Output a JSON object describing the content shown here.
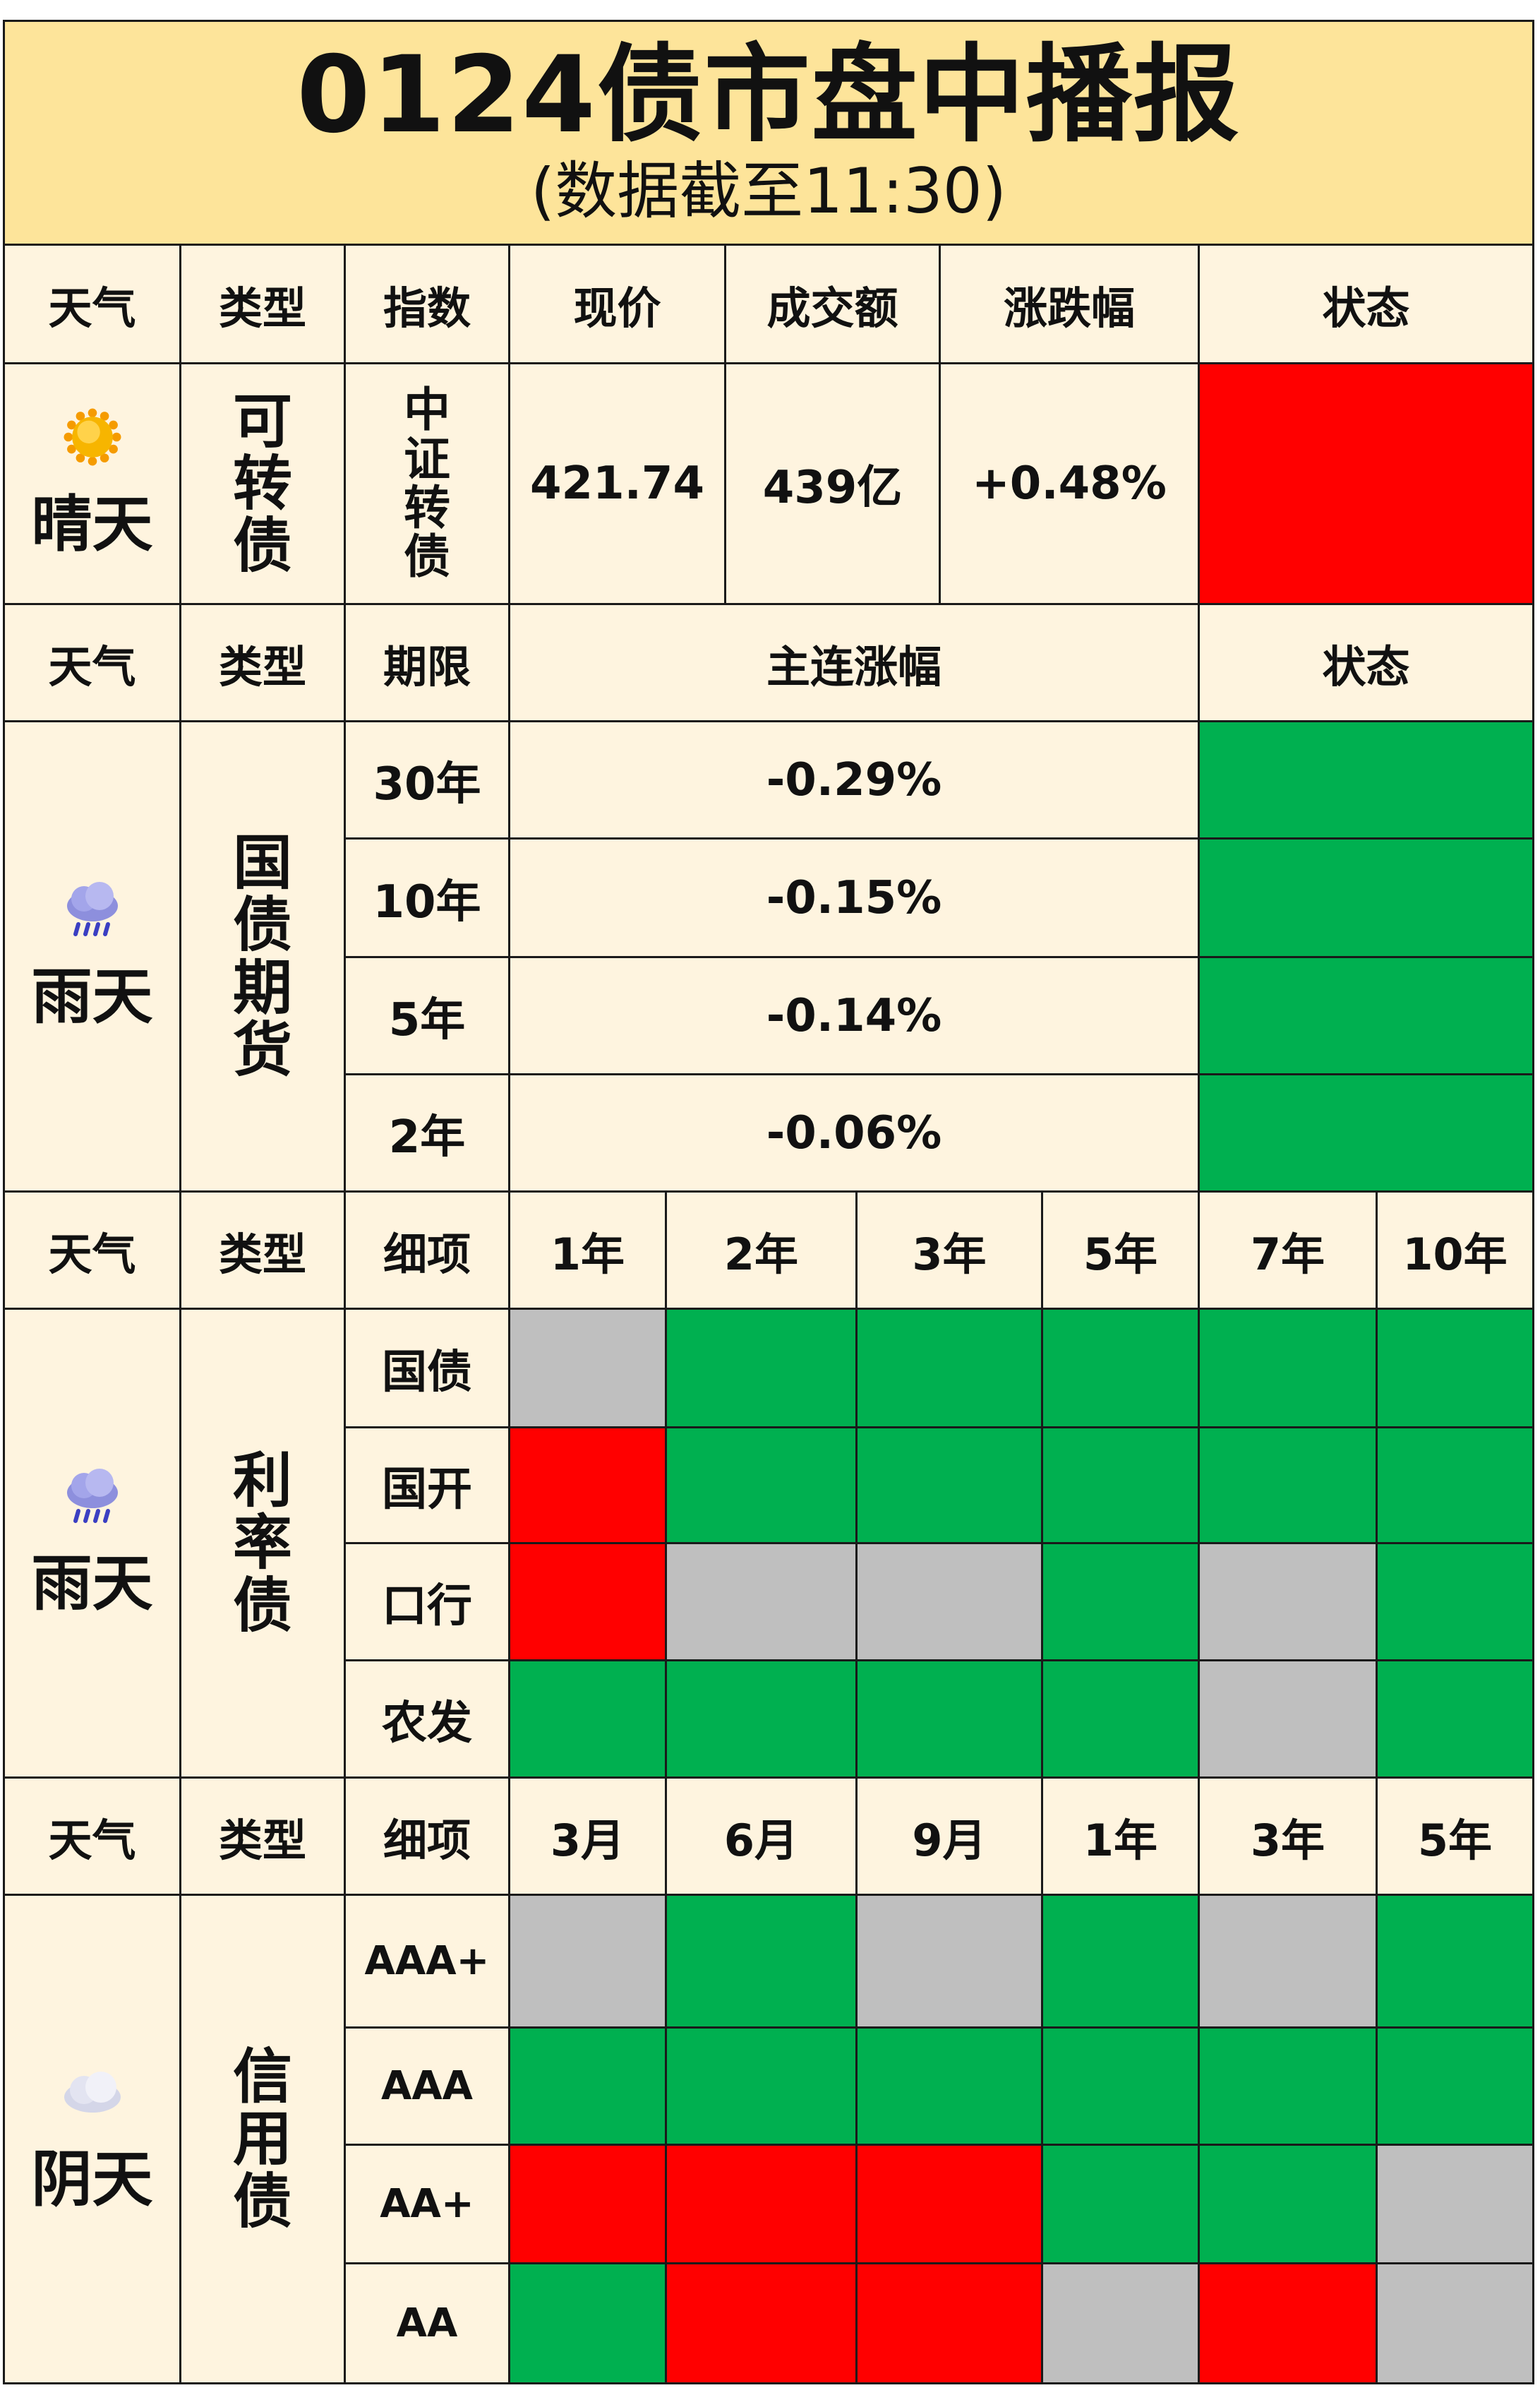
{
  "header": {
    "title": "0124债市盘中播报",
    "subtitle": "(数据截至11:30)"
  },
  "colors": {
    "red": "#ff0000",
    "green": "#00b050",
    "gray": "#bfbfbf",
    "cell": "#fef4df",
    "title": "#fde49a"
  },
  "convertible": {
    "headers": [
      "天气",
      "类型",
      "指数",
      "现价",
      "成交额",
      "涨跌幅",
      "状态"
    ],
    "weather": "晴天",
    "weather_icon": "sunny-icon",
    "type": "可转债",
    "index": "中证转债",
    "price": "421.74",
    "turnover": "439亿",
    "change": "+0.48%",
    "status": "red"
  },
  "treasury_futures": {
    "headers": [
      "天气",
      "类型",
      "期限",
      "主连涨幅",
      "状态"
    ],
    "weather": "雨天",
    "weather_icon": "rain-cloud-icon",
    "type": "国债期货",
    "rows": [
      {
        "term": "30年",
        "change": "-0.29%",
        "status": "green"
      },
      {
        "term": "10年",
        "change": "-0.15%",
        "status": "green"
      },
      {
        "term": "5年",
        "change": "-0.14%",
        "status": "green"
      },
      {
        "term": "2年",
        "change": "-0.06%",
        "status": "green"
      }
    ]
  },
  "rate_bonds": {
    "headers": [
      "天气",
      "类型",
      "细项",
      "1年",
      "2年",
      "3年",
      "5年",
      "7年",
      "10年"
    ],
    "weather": "雨天",
    "weather_icon": "rain-cloud-icon",
    "type": "利率债",
    "rows": [
      {
        "item": "国债",
        "status": [
          "gray",
          "green",
          "green",
          "green",
          "green",
          "green"
        ]
      },
      {
        "item": "国开",
        "status": [
          "red",
          "green",
          "green",
          "green",
          "green",
          "green"
        ]
      },
      {
        "item": "口行",
        "status": [
          "red",
          "gray",
          "gray",
          "green",
          "gray",
          "green"
        ]
      },
      {
        "item": "农发",
        "status": [
          "green",
          "green",
          "green",
          "green",
          "gray",
          "green"
        ]
      }
    ]
  },
  "credit_bonds": {
    "headers": [
      "天气",
      "类型",
      "细项",
      "3月",
      "6月",
      "9月",
      "1年",
      "3年",
      "5年"
    ],
    "weather": "阴天",
    "weather_icon": "cloud-icon",
    "type": "信用债",
    "rows": [
      {
        "item": "AAA+",
        "status": [
          "gray",
          "green",
          "gray",
          "green",
          "gray",
          "green"
        ]
      },
      {
        "item": "AAA",
        "status": [
          "green",
          "green",
          "green",
          "green",
          "green",
          "green"
        ]
      },
      {
        "item": "AA+",
        "status": [
          "red",
          "red",
          "red",
          "green",
          "green",
          "gray"
        ]
      },
      {
        "item": "AA",
        "status": [
          "green",
          "red",
          "red",
          "gray",
          "red",
          "gray"
        ]
      }
    ]
  }
}
